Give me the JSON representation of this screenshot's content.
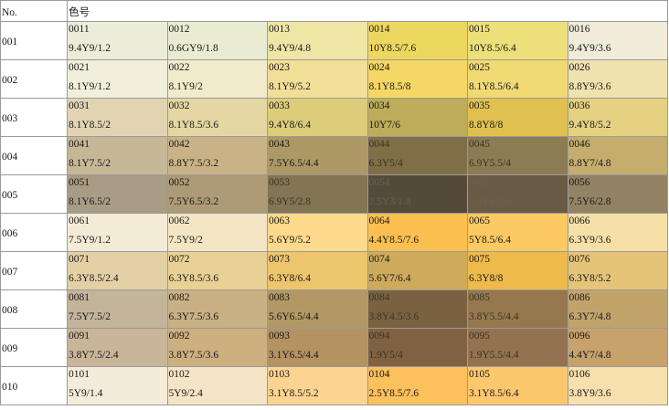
{
  "header": {
    "no_label": "No.",
    "code_label": "色号"
  },
  "rows": [
    {
      "no": "001",
      "cells": [
        {
          "code": "0011",
          "spec": "9.4Y9/1.2",
          "color": "#ecedd8"
        },
        {
          "code": "0012",
          "spec": "0.6GY9/1.8",
          "color": "#e9ecd2"
        },
        {
          "code": "0013",
          "spec": "9.4Y9/4.8",
          "color": "#efe6a6"
        },
        {
          "code": "0014",
          "spec": "10Y8.5/7.6",
          "color": "#edd85f"
        },
        {
          "code": "0015",
          "spec": "10Y8.5/6.4",
          "color": "#ede07a"
        },
        {
          "code": "0016",
          "spec": "9.4Y9/3.6",
          "color": "#f1ecd9"
        }
      ]
    },
    {
      "no": "002",
      "cells": [
        {
          "code": "0021",
          "spec": "8.1Y9/1.2",
          "color": "#f1efdb"
        },
        {
          "code": "0022",
          "spec": "8.1Y9/2",
          "color": "#f1ebcc"
        },
        {
          "code": "0023",
          "spec": "8.1Y9/5.2",
          "color": "#f2df97"
        },
        {
          "code": "0024",
          "spec": "8.1Y8.5/8",
          "color": "#f5d765"
        },
        {
          "code": "0025",
          "spec": "8.1Y8.5/6.4",
          "color": "#f1d974"
        },
        {
          "code": "0026",
          "spec": "8.8Y9/3.6",
          "color": "#f0e2ae"
        }
      ]
    },
    {
      "no": "003",
      "cells": [
        {
          "code": "0031",
          "spec": "8.1Y8.5/2",
          "color": "#e2d4b2"
        },
        {
          "code": "0032",
          "spec": "8.1Y8.5/3.6",
          "color": "#e5d7a4"
        },
        {
          "code": "0033",
          "spec": "9.4Y8/6.4",
          "color": "#ddcc79"
        },
        {
          "code": "0034",
          "spec": "10Y7/6",
          "color": "#bdac5a"
        },
        {
          "code": "0035",
          "spec": "8.8Y8/8",
          "color": "#e0c14f"
        },
        {
          "code": "0036",
          "spec": "9.4Y8/5.2",
          "color": "#e5d181"
        }
      ]
    },
    {
      "no": "004",
      "cells": [
        {
          "code": "0041",
          "spec": "8.1Y7.5/2",
          "color": "#c6b797"
        },
        {
          "code": "0042",
          "spec": "8.8Y7.5/3.2",
          "color": "#c9b386"
        },
        {
          "code": "0043",
          "spec": "7.5Y6.5/4.4",
          "color": "#ad9966"
        },
        {
          "code": "0044",
          "spec": "6.3Y5/4",
          "color": "#7f6e46",
          "dark": true
        },
        {
          "code": "0045",
          "spec": "6.9Y5.5/4",
          "color": "#8c7c53",
          "dark": true
        },
        {
          "code": "0046",
          "spec": "8.8Y7/4.8",
          "color": "#c4ad6d"
        }
      ]
    },
    {
      "no": "005",
      "cells": [
        {
          "code": "0051",
          "spec": "8.1Y6.5/2",
          "color": "#a89c84"
        },
        {
          "code": "0052",
          "spec": "7.5Y6.5/3.2",
          "color": "#ad9a76"
        },
        {
          "code": "0053",
          "spec": "6.9Y5/2.8",
          "color": "#837453",
          "dark": true
        },
        {
          "code": "0054",
          "spec": "2.5Y3/1.8",
          "color": "#544a3a",
          "vdark": true
        },
        {
          "code": "0055",
          "spec": "6.3Y4/2.4",
          "color": "#695c46",
          "vdark": true
        },
        {
          "code": "0056",
          "spec": "7.5Y6/2.8",
          "color": "#928365"
        }
      ]
    },
    {
      "no": "006",
      "cells": [
        {
          "code": "0061",
          "spec": "7.5Y9/1.2",
          "color": "#f4ebd7"
        },
        {
          "code": "0062",
          "spec": "7.5Y9/2",
          "color": "#f4e6c4"
        },
        {
          "code": "0063",
          "spec": "5.6Y9/5.2",
          "color": "#fcd98b"
        },
        {
          "code": "0064",
          "spec": "4.4Y8.5/7.6",
          "color": "#fbc04f"
        },
        {
          "code": "0065",
          "spec": "5Y8.5/6.4",
          "color": "#fcc962"
        },
        {
          "code": "0066",
          "spec": "6.3Y9/3.6",
          "color": "#f6e0a8"
        }
      ]
    },
    {
      "no": "007",
      "cells": [
        {
          "code": "0071",
          "spec": "6.3Y8.5/2.4",
          "color": "#e4d0a5"
        },
        {
          "code": "0072",
          "spec": "6.3Y8.5/3.6",
          "color": "#e9d196"
        },
        {
          "code": "0073",
          "spec": "6.3Y8/6.4",
          "color": "#ecc56c"
        },
        {
          "code": "0074",
          "spec": "5.6Y7/6.4",
          "color": "#ceaa5c"
        },
        {
          "code": "0075",
          "spec": "6.3Y8/8",
          "color": "#eeba4b"
        },
        {
          "code": "0076",
          "spec": "6.3Y8/5.2",
          "color": "#e5c479"
        }
      ]
    },
    {
      "no": "008",
      "cells": [
        {
          "code": "0081",
          "spec": "7.5Y7.5/2",
          "color": "#c4b49a"
        },
        {
          "code": "0082",
          "spec": "6.3Y7.5/3.6",
          "color": "#c9b185"
        },
        {
          "code": "0083",
          "spec": "5.6Y6.5/4.4",
          "color": "#b29864"
        },
        {
          "code": "0084",
          "spec": "3.8Y4.5/3.6",
          "color": "#7a6240",
          "dark": true
        },
        {
          "code": "0085",
          "spec": "3.8Y5.5/4.4",
          "color": "#95784d",
          "dark": true
        },
        {
          "code": "0086",
          "spec": "6.3Y7/4.8",
          "color": "#c2a46b"
        }
      ]
    },
    {
      "no": "009",
      "cells": [
        {
          "code": "0091",
          "spec": "3.8Y7.5/2.4",
          "color": "#c9b598"
        },
        {
          "code": "0092",
          "spec": "3.8Y7.5/3.6",
          "color": "#cdaf80"
        },
        {
          "code": "0093",
          "spec": "3.1Y6.5/4.4",
          "color": "#b49262"
        },
        {
          "code": "0094",
          "spec": "1.9Y5/4",
          "color": "#806242",
          "dark": true
        },
        {
          "code": "0095",
          "spec": "1.9Y5.5/4.4",
          "color": "#947250",
          "dark": true
        },
        {
          "code": "0096",
          "spec": "4.4Y7/4.8",
          "color": "#c8a26b"
        }
      ]
    },
    {
      "no": "010",
      "cells": [
        {
          "code": "0101",
          "spec": "5Y9/1.4",
          "color": "#f4ebda"
        },
        {
          "code": "0102",
          "spec": "5Y9/2.4",
          "color": "#f5e4c6"
        },
        {
          "code": "0103",
          "spec": "3.1Y8.5/5.2",
          "color": "#fcd390"
        },
        {
          "code": "0104",
          "spec": "2.5Y8.5/7.6",
          "color": "#fcc05c"
        },
        {
          "code": "0105",
          "spec": "3.1Y8.5/6.4",
          "color": "#fcc86e"
        },
        {
          "code": "0106",
          "spec": "3.8Y9/3.6",
          "color": "#f7dfae"
        }
      ]
    }
  ]
}
